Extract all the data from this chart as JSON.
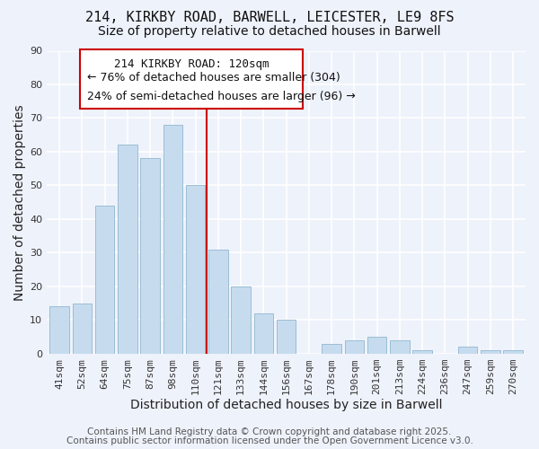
{
  "title": "214, KIRKBY ROAD, BARWELL, LEICESTER, LE9 8FS",
  "subtitle": "Size of property relative to detached houses in Barwell",
  "xlabel": "Distribution of detached houses by size in Barwell",
  "ylabel": "Number of detached properties",
  "bar_labels": [
    "41sqm",
    "52sqm",
    "64sqm",
    "75sqm",
    "87sqm",
    "98sqm",
    "110sqm",
    "121sqm",
    "133sqm",
    "144sqm",
    "156sqm",
    "167sqm",
    "178sqm",
    "190sqm",
    "201sqm",
    "213sqm",
    "224sqm",
    "236sqm",
    "247sqm",
    "259sqm",
    "270sqm"
  ],
  "bar_values": [
    14,
    15,
    44,
    62,
    58,
    68,
    50,
    31,
    20,
    12,
    10,
    0,
    3,
    4,
    5,
    4,
    1,
    0,
    2,
    1,
    1
  ],
  "bar_color": "#c6dcee",
  "bar_edge_color": "#9bbdd4",
  "vline_color": "#cc0000",
  "ylim": [
    0,
    90
  ],
  "yticks": [
    0,
    10,
    20,
    30,
    40,
    50,
    60,
    70,
    80,
    90
  ],
  "annotation_title": "214 KIRKBY ROAD: 120sqm",
  "annotation_line1": "← 76% of detached houses are smaller (304)",
  "annotation_line2": "24% of semi-detached houses are larger (96) →",
  "footer1": "Contains HM Land Registry data © Crown copyright and database right 2025.",
  "footer2": "Contains public sector information licensed under the Open Government Licence v3.0.",
  "background_color": "#eef2fb",
  "title_fontsize": 11,
  "subtitle_fontsize": 10,
  "axis_label_fontsize": 10,
  "tick_fontsize": 8,
  "annotation_title_fontsize": 9,
  "annotation_fontsize": 9,
  "footer_fontsize": 7.5
}
